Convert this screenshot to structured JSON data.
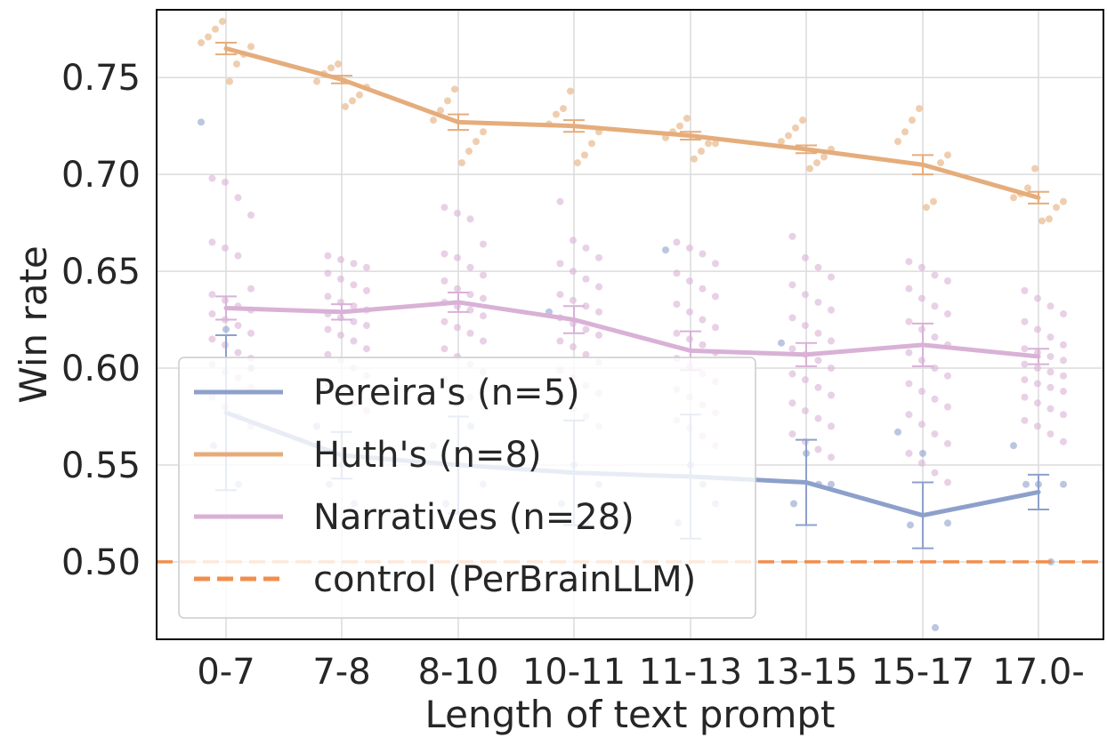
{
  "chart_data": {
    "type": "line",
    "xlabel": "Length of text prompt",
    "ylabel": "Win rate",
    "categories": [
      "0-7",
      "7-8",
      "8-10",
      "10-11",
      "11-13",
      "13-15",
      "15-17",
      "17.0-"
    ],
    "ylim": [
      0.46,
      0.785
    ],
    "yticks": [
      0.5,
      0.55,
      0.6,
      0.65,
      0.7,
      0.75
    ],
    "ytick_labels": [
      "0.50",
      "0.55",
      "0.60",
      "0.65",
      "0.70",
      "0.75"
    ],
    "grid": true,
    "legend_position": "lower-left",
    "series": [
      {
        "name": "Pereira's (n=5)",
        "color": "#8da0cb",
        "values": [
          0.577,
          0.555,
          0.55,
          0.546,
          0.544,
          0.541,
          0.524,
          0.536
        ],
        "err": [
          0.04,
          0.012,
          0.025,
          0.027,
          0.032,
          0.022,
          0.017,
          0.009
        ],
        "points": [
          [
            0.727,
            0.62,
            0.6,
            0.56,
            0.54
          ],
          [
            0.57,
            0.55,
            0.56,
            0.54,
            0.53
          ],
          [
            0.56,
            0.55,
            0.54,
            0.53,
            0.57
          ],
          [
            0.629,
            0.55,
            0.54,
            0.53,
            0.52
          ],
          [
            0.661,
            0.55,
            0.53,
            0.52,
            0.54
          ],
          [
            0.613,
            0.556,
            0.54,
            0.53,
            0.54
          ],
          [
            0.567,
            0.556,
            0.52,
            0.519,
            0.466
          ],
          [
            0.56,
            0.54,
            0.54,
            0.54,
            0.5
          ]
        ]
      },
      {
        "name": "Huth's (n=8)",
        "color": "#e5ad7c",
        "values": [
          0.765,
          0.749,
          0.727,
          0.725,
          0.72,
          0.713,
          0.705,
          0.688
        ],
        "err": [
          0.003,
          0.002,
          0.004,
          0.003,
          0.002,
          0.002,
          0.005,
          0.003
        ],
        "points": [
          [
            0.779,
            0.775,
            0.771,
            0.768,
            0.766,
            0.762,
            0.757,
            0.748
          ],
          [
            0.757,
            0.755,
            0.752,
            0.748,
            0.745,
            0.741,
            0.738,
            0.735
          ],
          [
            0.744,
            0.738,
            0.733,
            0.728,
            0.722,
            0.717,
            0.712,
            0.706
          ],
          [
            0.743,
            0.734,
            0.731,
            0.726,
            0.722,
            0.716,
            0.71,
            0.706
          ],
          [
            0.729,
            0.725,
            0.722,
            0.719,
            0.716,
            0.716,
            0.712,
            0.708
          ],
          [
            0.728,
            0.724,
            0.72,
            0.717,
            0.713,
            0.709,
            0.706,
            0.703
          ],
          [
            0.734,
            0.728,
            0.722,
            0.717,
            0.71,
            0.706,
            0.686,
            0.683
          ],
          [
            0.703,
            0.693,
            0.69,
            0.688,
            0.686,
            0.683,
            0.677,
            0.676
          ]
        ]
      },
      {
        "name": "Narratives (n=28)",
        "color": "#d9b1d6",
        "values": [
          0.631,
          0.629,
          0.634,
          0.625,
          0.609,
          0.607,
          0.612,
          0.606
        ],
        "err": [
          0.006,
          0.004,
          0.005,
          0.007,
          0.01,
          0.006,
          0.011,
          0.004
        ],
        "points": [
          [
            0.698,
            0.696,
            0.688,
            0.679,
            0.665,
            0.662,
            0.658,
            0.641,
            0.638,
            0.635,
            0.632,
            0.63,
            0.628,
            0.625,
            0.622,
            0.618,
            0.615,
            0.612,
            0.608,
            0.605,
            0.602,
            0.598,
            0.595,
            0.59,
            0.585,
            0.58,
            0.575,
            0.57
          ],
          [
            0.658,
            0.656,
            0.654,
            0.652,
            0.649,
            0.646,
            0.643,
            0.64,
            0.637,
            0.634,
            0.632,
            0.63,
            0.628,
            0.626,
            0.624,
            0.622,
            0.62,
            0.617,
            0.614,
            0.61,
            0.607,
            0.604,
            0.6,
            0.596,
            0.592,
            0.587,
            0.582,
            0.578
          ],
          [
            0.683,
            0.68,
            0.677,
            0.664,
            0.659,
            0.657,
            0.652,
            0.648,
            0.645,
            0.641,
            0.638,
            0.636,
            0.634,
            0.632,
            0.63,
            0.627,
            0.624,
            0.621,
            0.618,
            0.614,
            0.61,
            0.606,
            0.602,
            0.598,
            0.594,
            0.59,
            0.585,
            0.58
          ],
          [
            0.686,
            0.666,
            0.662,
            0.657,
            0.654,
            0.65,
            0.646,
            0.642,
            0.638,
            0.635,
            0.632,
            0.629,
            0.626,
            0.623,
            0.62,
            0.617,
            0.614,
            0.611,
            0.607,
            0.603,
            0.599,
            0.595,
            0.591,
            0.587,
            0.583,
            0.579,
            0.575,
            0.57
          ],
          [
            0.665,
            0.662,
            0.659,
            0.654,
            0.649,
            0.645,
            0.641,
            0.637,
            0.633,
            0.629,
            0.625,
            0.621,
            0.618,
            0.615,
            0.612,
            0.608,
            0.605,
            0.601,
            0.597,
            0.593,
            0.589,
            0.585,
            0.581,
            0.577,
            0.573,
            0.569,
            0.565,
            0.56
          ],
          [
            0.668,
            0.657,
            0.652,
            0.647,
            0.643,
            0.638,
            0.634,
            0.63,
            0.626,
            0.622,
            0.618,
            0.614,
            0.61,
            0.607,
            0.604,
            0.6,
            0.597,
            0.594,
            0.59,
            0.586,
            0.582,
            0.578,
            0.574,
            0.57,
            0.566,
            0.562,
            0.558,
            0.554
          ],
          [
            0.655,
            0.652,
            0.648,
            0.645,
            0.641,
            0.636,
            0.632,
            0.628,
            0.624,
            0.62,
            0.616,
            0.612,
            0.608,
            0.604,
            0.6,
            0.596,
            0.592,
            0.588,
            0.584,
            0.58,
            0.576,
            0.571,
            0.566,
            0.561,
            0.556,
            0.551,
            0.546,
            0.541
          ],
          [
            0.64,
            0.636,
            0.632,
            0.628,
            0.624,
            0.62,
            0.616,
            0.612,
            0.61,
            0.608,
            0.606,
            0.604,
            0.602,
            0.6,
            0.598,
            0.596,
            0.594,
            0.592,
            0.59,
            0.588,
            0.585,
            0.582,
            0.579,
            0.576,
            0.573,
            0.57,
            0.566,
            0.562
          ]
        ]
      }
    ],
    "reference_lines": [
      {
        "name": "control (PerBrainLLM)",
        "color": "#f28e4c",
        "y": 0.5,
        "style": "dashed"
      }
    ]
  }
}
